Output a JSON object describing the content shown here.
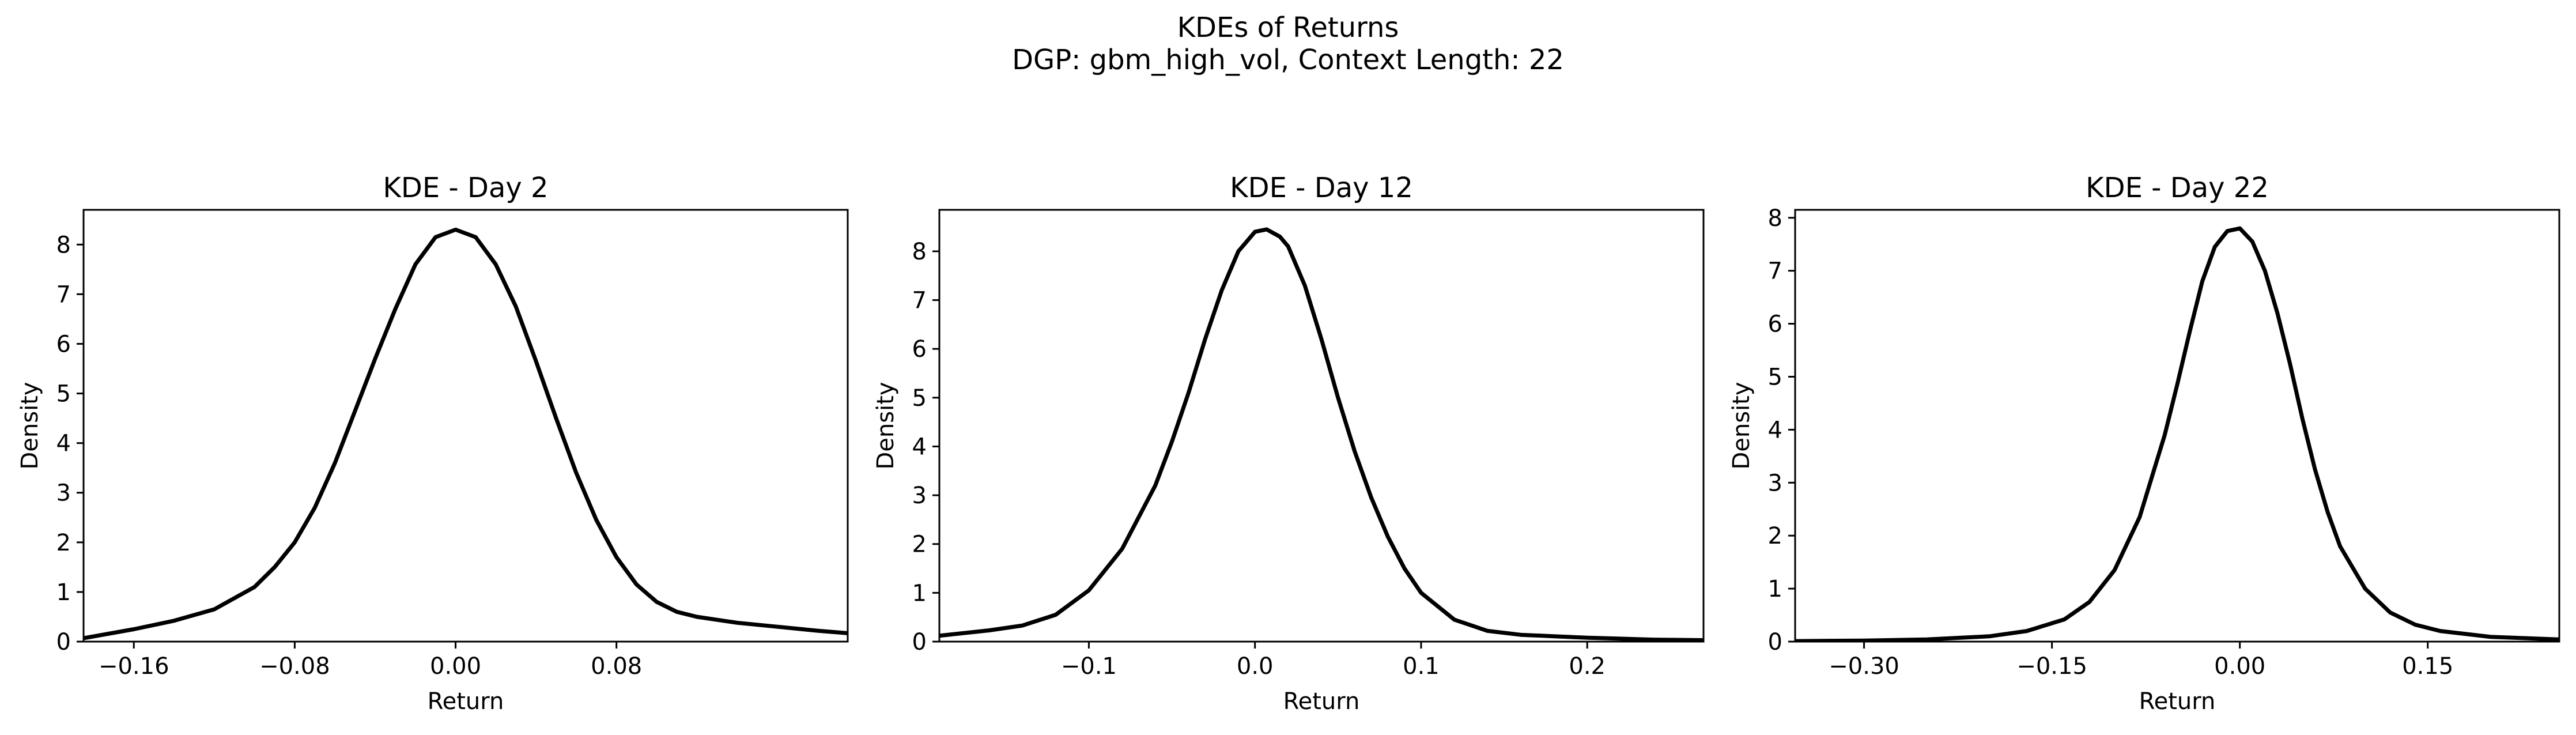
{
  "figure": {
    "title": "KDEs of Returns",
    "subtitle": "DGP: gbm_high_vol, Context Length: 22"
  },
  "chart_data": [
    {
      "type": "line",
      "title": "KDE - Day 2",
      "xlabel": "Return",
      "ylabel": "Density",
      "xlim": [
        -0.185,
        0.195
      ],
      "ylim": [
        0,
        8.7
      ],
      "xticks": [
        -0.16,
        -0.08,
        0.0,
        0.08
      ],
      "xtick_labels": [
        "−0.16",
        "−0.08",
        "0.00",
        "0.08"
      ],
      "yticks": [
        0,
        1,
        2,
        3,
        4,
        5,
        6,
        7,
        8
      ],
      "ytick_labels": [
        "0",
        "1",
        "2",
        "3",
        "4",
        "5",
        "6",
        "7",
        "8"
      ],
      "grid": false,
      "line_color": "#000000",
      "series": [
        {
          "x": [
            -0.185,
            -0.16,
            -0.14,
            -0.12,
            -0.1,
            -0.09,
            -0.08,
            -0.07,
            -0.06,
            -0.05,
            -0.04,
            -0.03,
            -0.02,
            -0.01,
            0.0,
            0.01,
            0.02,
            0.03,
            0.04,
            0.05,
            0.06,
            0.07,
            0.08,
            0.09,
            0.1,
            0.11,
            0.12,
            0.14,
            0.16,
            0.18,
            0.195
          ],
          "y": [
            0.07,
            0.25,
            0.42,
            0.65,
            1.1,
            1.5,
            2.0,
            2.7,
            3.6,
            4.65,
            5.7,
            6.7,
            7.6,
            8.15,
            8.3,
            8.15,
            7.6,
            6.75,
            5.65,
            4.5,
            3.4,
            2.45,
            1.7,
            1.15,
            0.8,
            0.6,
            0.5,
            0.38,
            0.3,
            0.22,
            0.17
          ]
        }
      ]
    },
    {
      "type": "line",
      "title": "KDE - Day 12",
      "xlabel": "Return",
      "ylabel": "Density",
      "xlim": [
        -0.19,
        0.27
      ],
      "ylim": [
        0,
        8.85
      ],
      "xticks": [
        -0.1,
        0.0,
        0.1,
        0.2
      ],
      "xtick_labels": [
        "−0.1",
        "0.0",
        "0.1",
        "0.2"
      ],
      "yticks": [
        0,
        1,
        2,
        3,
        4,
        5,
        6,
        7,
        8
      ],
      "ytick_labels": [
        "0",
        "1",
        "2",
        "3",
        "4",
        "5",
        "6",
        "7",
        "8"
      ],
      "grid": false,
      "line_color": "#000000",
      "series": [
        {
          "x": [
            -0.19,
            -0.16,
            -0.14,
            -0.12,
            -0.1,
            -0.08,
            -0.06,
            -0.05,
            -0.04,
            -0.03,
            -0.02,
            -0.01,
            0.0,
            0.007,
            0.015,
            0.02,
            0.03,
            0.04,
            0.05,
            0.06,
            0.07,
            0.08,
            0.09,
            0.1,
            0.12,
            0.14,
            0.16,
            0.18,
            0.2,
            0.22,
            0.24,
            0.27
          ],
          "y": [
            0.12,
            0.23,
            0.33,
            0.55,
            1.05,
            1.9,
            3.2,
            4.1,
            5.1,
            6.2,
            7.2,
            8.0,
            8.4,
            8.45,
            8.3,
            8.1,
            7.3,
            6.2,
            5.0,
            3.9,
            2.95,
            2.15,
            1.5,
            1.0,
            0.45,
            0.22,
            0.14,
            0.11,
            0.08,
            0.06,
            0.04,
            0.03
          ]
        }
      ]
    },
    {
      "type": "line",
      "title": "KDE - Day 22",
      "xlabel": "Return",
      "ylabel": "Density",
      "xlim": [
        -0.355,
        0.255
      ],
      "ylim": [
        0,
        8.15
      ],
      "xticks": [
        -0.3,
        -0.15,
        0.0,
        0.15
      ],
      "xtick_labels": [
        "−0.30",
        "−0.15",
        "0.00",
        "0.15"
      ],
      "yticks": [
        0,
        1,
        2,
        3,
        4,
        5,
        6,
        7,
        8
      ],
      "ytick_labels": [
        "0",
        "1",
        "2",
        "3",
        "4",
        "5",
        "6",
        "7",
        "8"
      ],
      "grid": false,
      "line_color": "#000000",
      "series": [
        {
          "x": [
            -0.355,
            -0.3,
            -0.25,
            -0.2,
            -0.17,
            -0.14,
            -0.12,
            -0.1,
            -0.08,
            -0.06,
            -0.05,
            -0.04,
            -0.03,
            -0.02,
            -0.01,
            0.0,
            0.01,
            0.02,
            0.03,
            0.04,
            0.05,
            0.06,
            0.07,
            0.08,
            0.1,
            0.12,
            0.14,
            0.16,
            0.2,
            0.255
          ],
          "y": [
            0.01,
            0.02,
            0.04,
            0.1,
            0.2,
            0.42,
            0.75,
            1.35,
            2.35,
            3.9,
            4.85,
            5.85,
            6.8,
            7.45,
            7.75,
            7.8,
            7.55,
            7.0,
            6.2,
            5.25,
            4.2,
            3.25,
            2.45,
            1.8,
            1.0,
            0.55,
            0.32,
            0.2,
            0.09,
            0.04
          ]
        }
      ]
    }
  ]
}
